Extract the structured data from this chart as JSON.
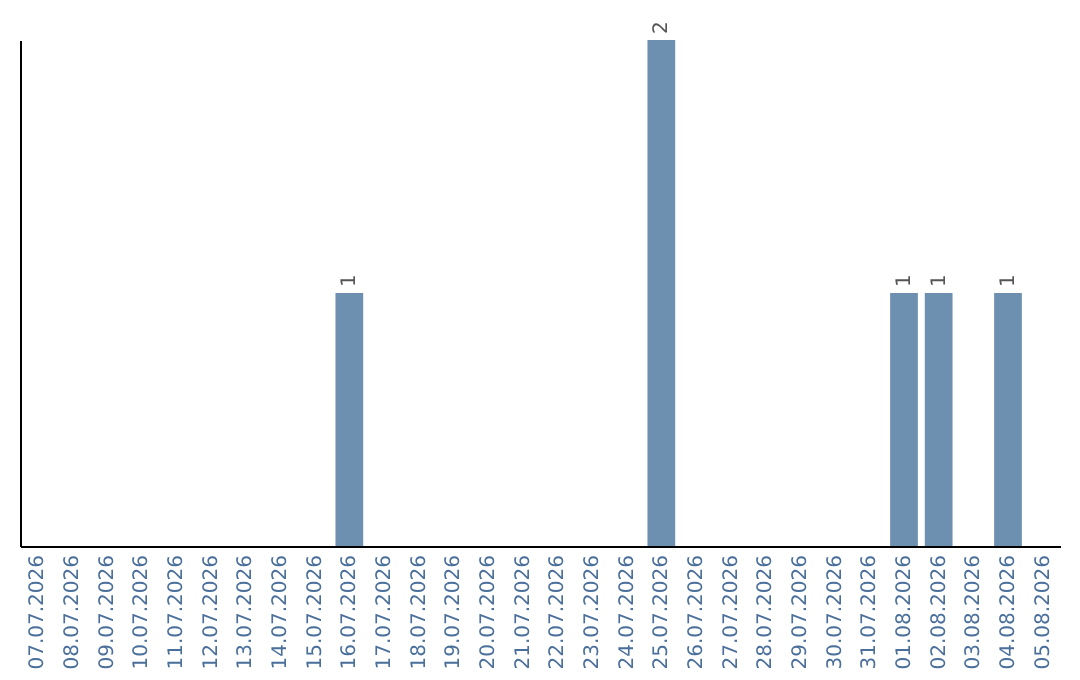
{
  "chart_data": {
    "type": "bar",
    "categories": [
      "07.07.2026",
      "08.07.2026",
      "09.07.2026",
      "10.07.2026",
      "11.07.2026",
      "12.07.2026",
      "13.07.2026",
      "14.07.2026",
      "15.07.2026",
      "16.07.2026",
      "17.07.2026",
      "18.07.2026",
      "19.07.2026",
      "20.07.2026",
      "21.07.2026",
      "22.07.2026",
      "23.07.2026",
      "24.07.2026",
      "25.07.2026",
      "26.07.2026",
      "27.07.2026",
      "28.07.2026",
      "29.07.2026",
      "30.07.2026",
      "31.07.2026",
      "01.08.2026",
      "02.08.2026",
      "03.08.2026",
      "04.08.2026",
      "05.08.2026"
    ],
    "values": [
      0,
      0,
      0,
      0,
      0,
      0,
      0,
      0,
      0,
      1,
      0,
      0,
      0,
      0,
      0,
      0,
      0,
      0,
      2,
      0,
      0,
      0,
      0,
      0,
      0,
      1,
      1,
      0,
      1,
      0
    ],
    "value_labels": [
      null,
      null,
      null,
      null,
      null,
      null,
      null,
      null,
      null,
      "1",
      null,
      null,
      null,
      null,
      null,
      null,
      null,
      null,
      "2",
      null,
      null,
      null,
      null,
      null,
      null,
      "1",
      "1",
      null,
      "1",
      null
    ],
    "color": "#6d8fb0",
    "tick_labels": "x"
  }
}
